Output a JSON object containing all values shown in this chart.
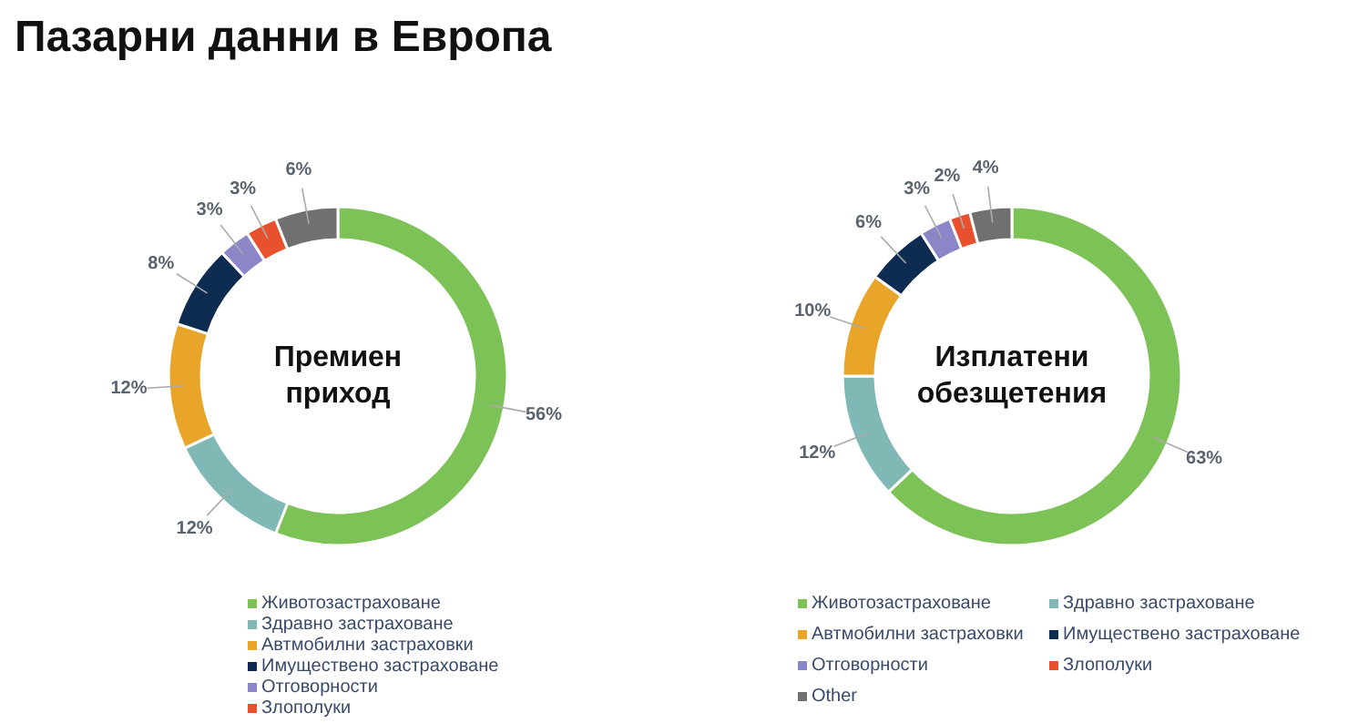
{
  "chart_data": [
    {
      "type": "donut",
      "title": "Пазарни данни в Европа",
      "annotations": [
        "Премиен приход"
      ],
      "categories": [
        "Животозастраховане",
        "Здравно застраховане",
        "Автмобилни застраховки",
        "Имуществено застраховане",
        "Отговорности",
        "Злополуки",
        null
      ],
      "values": [
        56,
        12,
        12,
        8,
        3,
        3,
        6
      ],
      "value_labels": [
        "56%",
        "12%",
        "12%",
        "8%",
        "3%",
        "3%",
        "6%"
      ],
      "colors": [
        "#7dc256",
        "#7fb8b4",
        "#e8a52a",
        "#0e2b52",
        "#8a86c8",
        "#e8502e",
        "#707070"
      ],
      "legend": "bottom"
    },
    {
      "type": "donut",
      "annotations": [
        "Изплатени обезщетения"
      ],
      "categories": [
        "Животозастраховане",
        "Здравно застраховане",
        "Автмобилни застраховки",
        "Имуществено застраховане",
        "Отговорности",
        "Злополуки",
        "Other"
      ],
      "values": [
        63,
        12,
        10,
        6,
        3,
        2,
        4
      ],
      "value_labels": [
        "63%",
        "12%",
        "10%",
        "6%",
        "3%",
        "2%",
        "4%"
      ],
      "colors": [
        "#7dc256",
        "#7fb8b4",
        "#e8a52a",
        "#0e2b52",
        "#8a86c8",
        "#e8502e",
        "#707070"
      ],
      "legend": "bottom"
    }
  ]
}
